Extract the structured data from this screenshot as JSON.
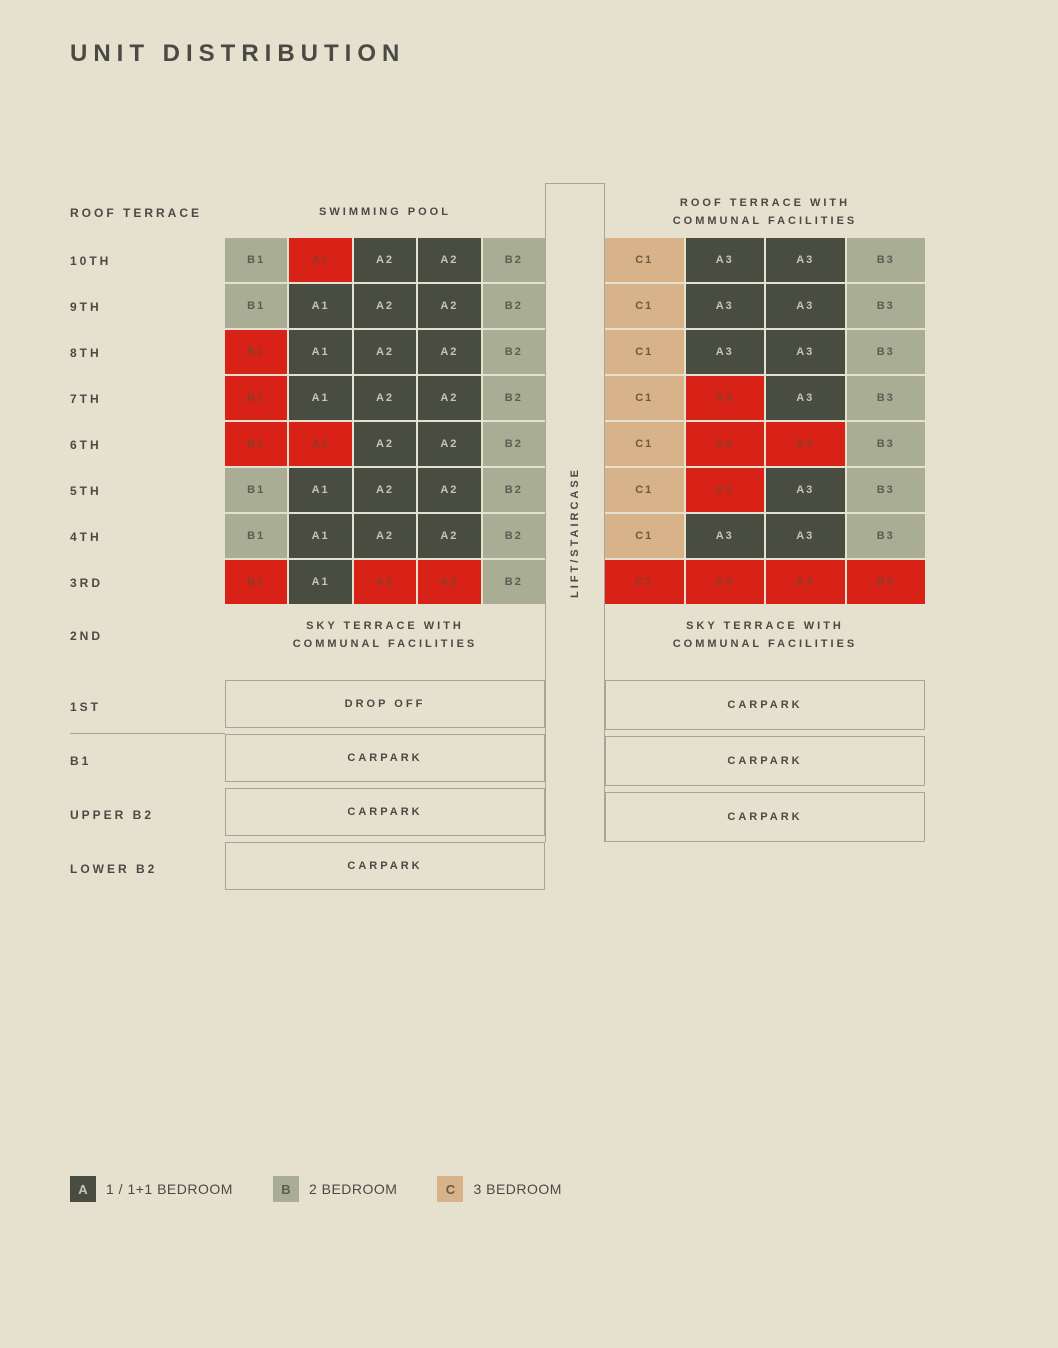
{
  "title": "UNIT DISTRIBUTION",
  "colors": {
    "bg": "#e6e0cf",
    "text": "#4a4a44",
    "border": "#a8a498",
    "A_dark": "#494c41",
    "A_text": "#c8c4b6",
    "B_sage": "#a8ad94",
    "B_text": "#5a5d52",
    "C_tan": "#d8b38a",
    "C_text": "#6b5940",
    "sold": "#d82218",
    "sold_text": "#8a3d28"
  },
  "left": {
    "header": "SWIMMING POOL",
    "floors": [
      "10TH",
      "9TH",
      "8TH",
      "7TH",
      "6TH",
      "5TH",
      "4TH",
      "3RD"
    ],
    "header_label": "ROOF TERRACE",
    "grid": [
      [
        {
          "l": "B1",
          "c": "B"
        },
        {
          "l": "A1",
          "c": "sold"
        },
        {
          "l": "A2",
          "c": "A"
        },
        {
          "l": "A2",
          "c": "A"
        },
        {
          "l": "B2",
          "c": "B"
        }
      ],
      [
        {
          "l": "B1",
          "c": "B"
        },
        {
          "l": "A1",
          "c": "A"
        },
        {
          "l": "A2",
          "c": "A"
        },
        {
          "l": "A2",
          "c": "A"
        },
        {
          "l": "B2",
          "c": "B"
        }
      ],
      [
        {
          "l": "B1",
          "c": "sold"
        },
        {
          "l": "A1",
          "c": "A"
        },
        {
          "l": "A2",
          "c": "A"
        },
        {
          "l": "A2",
          "c": "A"
        },
        {
          "l": "B2",
          "c": "B"
        }
      ],
      [
        {
          "l": "B1",
          "c": "sold"
        },
        {
          "l": "A1",
          "c": "A"
        },
        {
          "l": "A2",
          "c": "A"
        },
        {
          "l": "A2",
          "c": "A"
        },
        {
          "l": "B2",
          "c": "B"
        }
      ],
      [
        {
          "l": "B1",
          "c": "sold"
        },
        {
          "l": "A1",
          "c": "sold"
        },
        {
          "l": "A2",
          "c": "A"
        },
        {
          "l": "A2",
          "c": "A"
        },
        {
          "l": "B2",
          "c": "B"
        }
      ],
      [
        {
          "l": "B1",
          "c": "B"
        },
        {
          "l": "A1",
          "c": "A"
        },
        {
          "l": "A2",
          "c": "A"
        },
        {
          "l": "A2",
          "c": "A"
        },
        {
          "l": "B2",
          "c": "B"
        }
      ],
      [
        {
          "l": "B1",
          "c": "B"
        },
        {
          "l": "A1",
          "c": "A"
        },
        {
          "l": "A2",
          "c": "A"
        },
        {
          "l": "A2",
          "c": "A"
        },
        {
          "l": "B2",
          "c": "B"
        }
      ],
      [
        {
          "l": "B1",
          "c": "sold"
        },
        {
          "l": "A1",
          "c": "A"
        },
        {
          "l": "A2",
          "c": "sold"
        },
        {
          "l": "A2",
          "c": "sold"
        },
        {
          "l": "B2",
          "c": "B"
        }
      ]
    ],
    "sky_terrace": "SKY TERRACE WITH\nCOMMUNAL FACILITIES",
    "basement_labels": [
      "1ST",
      "B1",
      "UPPER B2",
      "LOWER B2"
    ],
    "basement_boxes": [
      "DROP OFF",
      "CARPARK",
      "CARPARK",
      "CARPARK"
    ]
  },
  "right": {
    "header": "ROOF TERRACE WITH\nCOMMUNAL FACILITIES",
    "grid": [
      [
        {
          "l": "C1",
          "c": "C"
        },
        {
          "l": "A3",
          "c": "A"
        },
        {
          "l": "A3",
          "c": "A"
        },
        {
          "l": "B3",
          "c": "B"
        }
      ],
      [
        {
          "l": "C1",
          "c": "C"
        },
        {
          "l": "A3",
          "c": "A"
        },
        {
          "l": "A3",
          "c": "A"
        },
        {
          "l": "B3",
          "c": "B"
        }
      ],
      [
        {
          "l": "C1",
          "c": "C"
        },
        {
          "l": "A3",
          "c": "A"
        },
        {
          "l": "A3",
          "c": "A"
        },
        {
          "l": "B3",
          "c": "B"
        }
      ],
      [
        {
          "l": "C1",
          "c": "C"
        },
        {
          "l": "A3",
          "c": "sold"
        },
        {
          "l": "A3",
          "c": "A"
        },
        {
          "l": "B3",
          "c": "B"
        }
      ],
      [
        {
          "l": "C1",
          "c": "C"
        },
        {
          "l": "A3",
          "c": "sold"
        },
        {
          "l": "A3",
          "c": "sold"
        },
        {
          "l": "B3",
          "c": "B"
        }
      ],
      [
        {
          "l": "C1",
          "c": "C"
        },
        {
          "l": "A3",
          "c": "sold"
        },
        {
          "l": "A3",
          "c": "A"
        },
        {
          "l": "B3",
          "c": "B"
        }
      ],
      [
        {
          "l": "C1",
          "c": "C"
        },
        {
          "l": "A3",
          "c": "A"
        },
        {
          "l": "A3",
          "c": "A"
        },
        {
          "l": "B3",
          "c": "B"
        }
      ],
      [
        {
          "l": "C1",
          "c": "sold"
        },
        {
          "l": "A3",
          "c": "sold"
        },
        {
          "l": "A3",
          "c": "sold"
        },
        {
          "l": "B3",
          "c": "sold"
        }
      ]
    ],
    "sky_terrace": "SKY TERRACE WITH\nCOMMUNAL FACILITIES",
    "basement_boxes": [
      "CARPARK",
      "CARPARK",
      "CARPARK"
    ]
  },
  "lift_label": "LIFT/STAIRCASE",
  "second_label": "2ND",
  "legend": [
    {
      "key": "A",
      "label": "1 / 1+1 BEDROOM",
      "bg": "#494c41",
      "fg": "#c8c4b6"
    },
    {
      "key": "B",
      "label": "2 BEDROOM",
      "bg": "#a8ad94",
      "fg": "#5a5d52"
    },
    {
      "key": "C",
      "label": "3 BEDROOM",
      "bg": "#d8b38a",
      "fg": "#6b5940"
    }
  ]
}
